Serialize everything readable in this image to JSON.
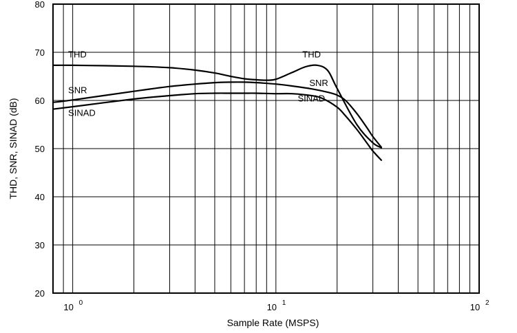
{
  "chart_data": {
    "type": "line",
    "xscale": "log",
    "xlim": [
      0.8,
      100
    ],
    "ylim": [
      20,
      80
    ],
    "xlabel": "Sample Rate (MSPS)",
    "ylabel": "THD, SNR, SINAD (dB)",
    "grid": true,
    "y_ticks": [
      "20",
      "30",
      "40",
      "50",
      "60",
      "70",
      "80"
    ],
    "x_ticks": [
      {
        "value": 1,
        "base": "10",
        "exp": "0"
      },
      {
        "value": 10,
        "base": "10",
        "exp": "1"
      },
      {
        "value": 100,
        "base": "10",
        "exp": "2"
      }
    ],
    "series": [
      {
        "name": "THD",
        "x": [
          0.8,
          1,
          2,
          3,
          4,
          5,
          6,
          7,
          8,
          9,
          10,
          12,
          14,
          16,
          18,
          20,
          25,
          30,
          33
        ],
        "y": [
          67.3,
          67.3,
          67.1,
          66.8,
          66.3,
          65.7,
          65.0,
          64.5,
          64.3,
          64.2,
          64.4,
          65.8,
          67.0,
          67.3,
          66.2,
          62.5,
          55.0,
          51.2,
          50.2
        ]
      },
      {
        "name": "SNR",
        "x": [
          0.8,
          1,
          2,
          3,
          4,
          5,
          6,
          7,
          8,
          10,
          12,
          15,
          18,
          20,
          22,
          25,
          28,
          30,
          33
        ],
        "y": [
          59.6,
          60.1,
          61.9,
          62.9,
          63.4,
          63.7,
          63.8,
          63.8,
          63.7,
          63.4,
          63.0,
          62.4,
          61.7,
          61.1,
          60.0,
          57.3,
          54.4,
          52.5,
          50.3
        ]
      },
      {
        "name": "SINAD",
        "x": [
          0.8,
          1,
          2,
          3,
          4,
          5,
          6,
          7,
          8,
          10,
          12,
          15,
          17,
          20,
          22,
          25,
          28,
          30,
          33
        ],
        "y": [
          58.2,
          58.7,
          60.3,
          61.0,
          61.4,
          61.5,
          61.5,
          61.5,
          61.5,
          61.4,
          61.4,
          61.0,
          60.4,
          58.6,
          56.8,
          54.0,
          51.2,
          49.5,
          47.6
        ]
      }
    ],
    "annotations": [
      {
        "text": "THD",
        "x": 0.95,
        "y": 68.9
      },
      {
        "text": "SNR",
        "x": 0.95,
        "y": 61.5
      },
      {
        "text": "SINAD",
        "x": 0.95,
        "y": 56.8
      },
      {
        "text": "THD",
        "x": 13.5,
        "y": 68.9
      },
      {
        "text": "SNR",
        "x": 14.6,
        "y": 63.0
      },
      {
        "text": "SINAD",
        "x": 12.8,
        "y": 59.8
      }
    ]
  }
}
